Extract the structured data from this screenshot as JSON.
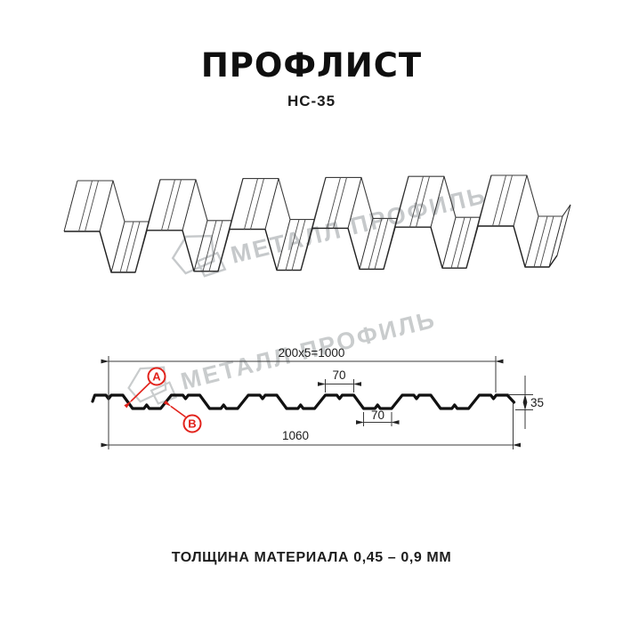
{
  "header": {
    "title": "ПРОФЛИСТ",
    "subtitle": "НС-35"
  },
  "watermark": {
    "text": "МЕТАЛЛ ПРОФИЛЬ"
  },
  "drawing": {
    "dimensions": {
      "module_width": "200x5=1000",
      "crest_top_width": "70",
      "valley_bottom_width": "70",
      "overall_width": "1060",
      "profile_height": "35"
    },
    "labels": {
      "point_a": "А",
      "point_b": "В"
    }
  },
  "footer": {
    "caption": "ТОЛЩИНА МАТЕРИАЛА 0,45 – 0,9 ММ"
  },
  "colors": {
    "accent_red": "#e2231c",
    "line_black": "#141414",
    "dim_line": "#3a3a3a",
    "watermark_gray": "#c6c9cb"
  }
}
